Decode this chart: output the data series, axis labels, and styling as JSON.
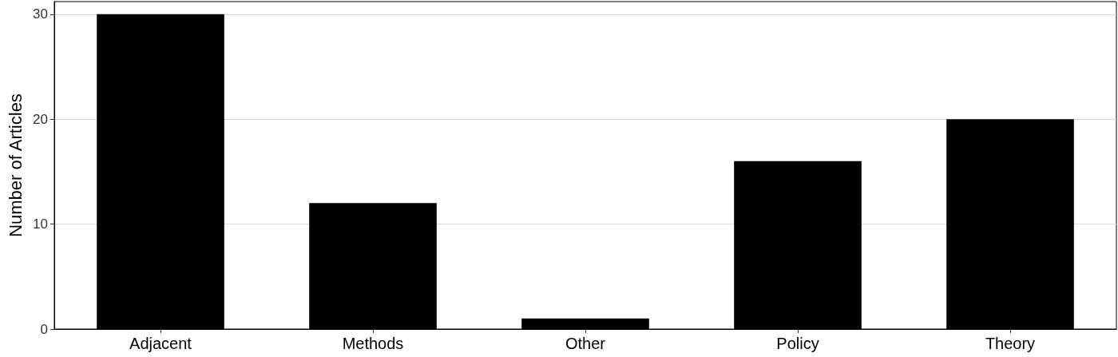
{
  "chart_data": {
    "type": "bar",
    "ylabel": "Number of Articles",
    "categories": [
      "Adjacent",
      "Methods",
      "Other",
      "Policy",
      "Theory"
    ],
    "values": [
      30,
      12,
      1,
      16,
      20
    ],
    "color": "#000000",
    "ylim": [
      0,
      31.2
    ],
    "yticks": [
      0,
      10,
      20,
      30
    ],
    "grid": "y"
  }
}
